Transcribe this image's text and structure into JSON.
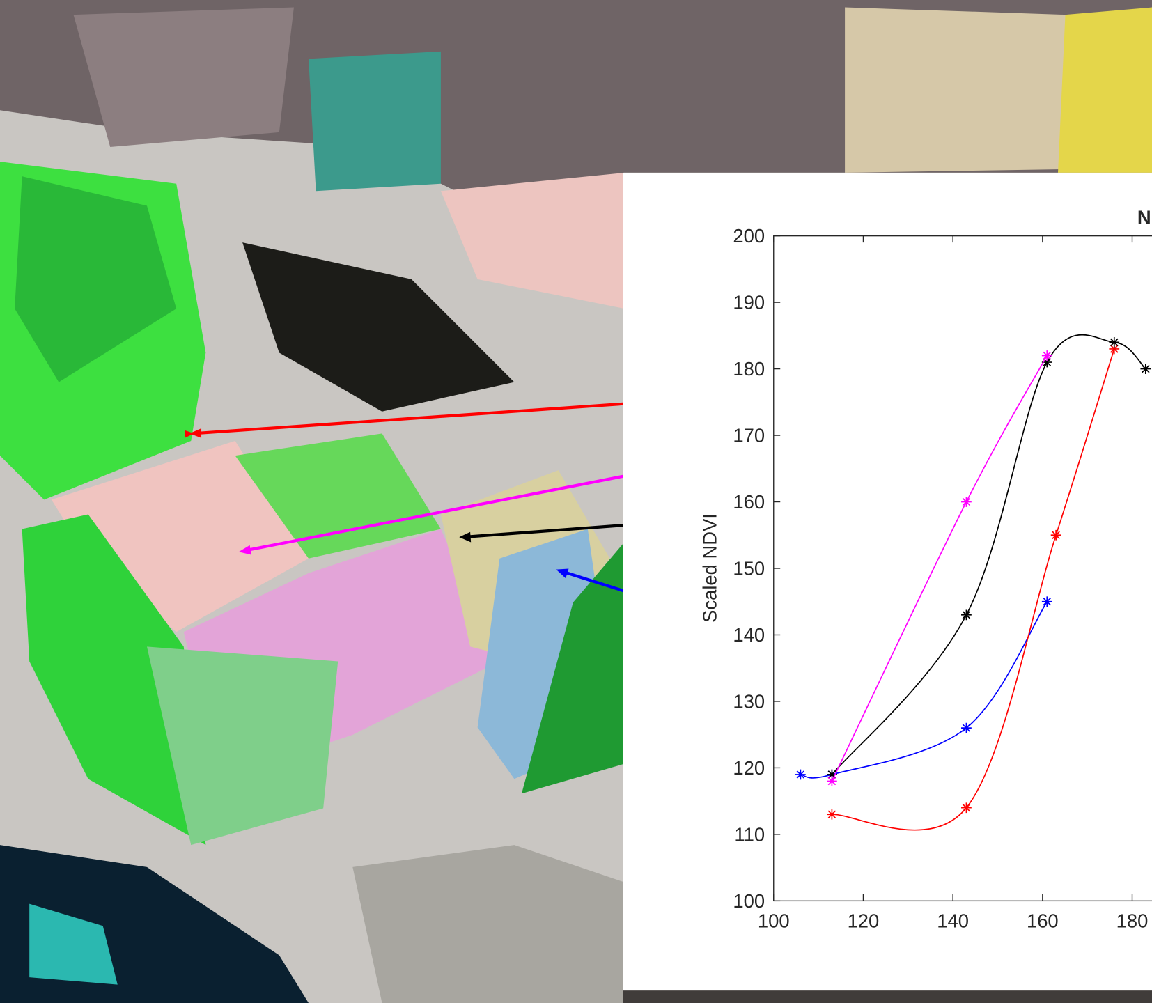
{
  "chart_data": {
    "type": "line",
    "title": "N",
    "ylabel": "Scaled NDVI",
    "xlim": [
      100,
      200
    ],
    "xticks": [
      100,
      120,
      140,
      160,
      180
    ],
    "ylim": [
      100,
      200
    ],
    "yticks": [
      100,
      110,
      120,
      130,
      140,
      150,
      160,
      170,
      180,
      190,
      200
    ],
    "series": [
      {
        "color": "#0000ff",
        "x": [
          106,
          113,
          143,
          161
        ],
        "values": [
          119,
          119,
          126,
          145
        ]
      },
      {
        "color": "#ff0000",
        "x": [
          113,
          143,
          163,
          176
        ],
        "values": [
          113,
          114,
          155,
          183
        ]
      },
      {
        "color": "#000000",
        "x": [
          113,
          143,
          161,
          176,
          183
        ],
        "values": [
          119,
          143,
          181,
          184,
          180
        ]
      },
      {
        "color": "#ff00ff",
        "x": [
          113,
          143,
          161
        ],
        "values": [
          118,
          160,
          182
        ]
      }
    ]
  }
}
